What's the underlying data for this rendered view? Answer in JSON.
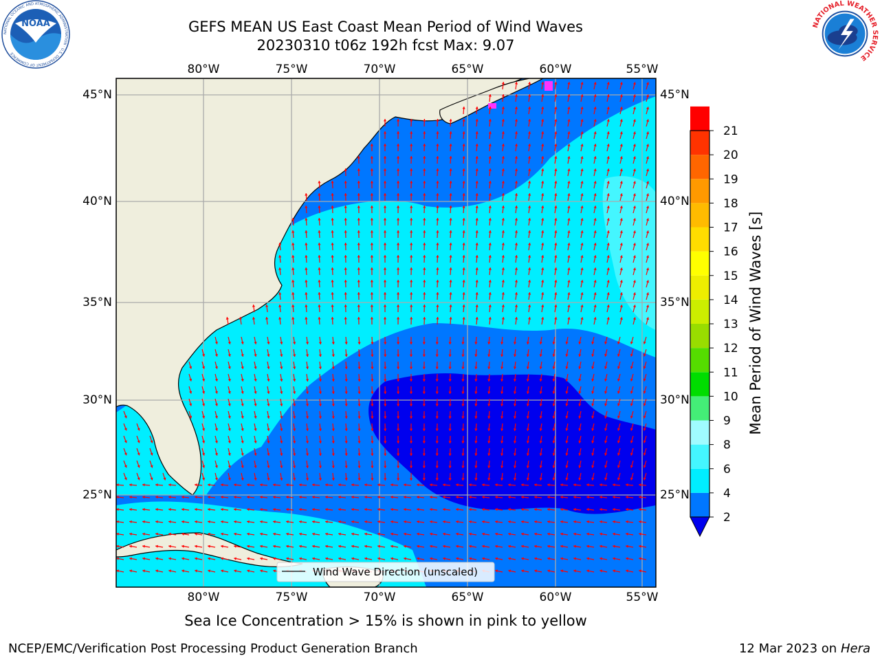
{
  "title": "GEFS MEAN US East Coast Mean Period of Wind Waves",
  "subtitle": "20230310 t06z 192h fcst   Max: 9.07",
  "longitude_labels": [
    "80°W",
    "75°W",
    "70°W",
    "65°W",
    "60°W",
    "55°W"
  ],
  "latitude_labels": [
    "45°N",
    "40°N",
    "35°N",
    "30°N",
    "25°N"
  ],
  "legend_label": "Wind Wave Direction (unscaled)",
  "colorbar": {
    "label": "Mean Period of Wind Waves [s]",
    "ticks": [
      "2",
      "4",
      "6",
      "8",
      "9",
      "10",
      "11",
      "12",
      "13",
      "14",
      "15",
      "16",
      "17",
      "18",
      "19",
      "20",
      "21"
    ],
    "colors": [
      "#0077ff",
      "#00eeff",
      "#44f6ff",
      "#a0fbff",
      "#44ee77",
      "#00dd00",
      "#55dd00",
      "#99dd00",
      "#ccee00",
      "#eeee00",
      "#ffff00",
      "#ffdd00",
      "#ffbb00",
      "#ff9900",
      "#ff6600",
      "#ff3300",
      "#ff0000"
    ],
    "under_color": "#0000ee"
  },
  "colors": {
    "land": "#efeedd",
    "ocean_2_4": "#0077ff",
    "ocean_lt2": "#0000ee",
    "ocean_4_6": "#00eeff",
    "ocean_6_8": "#44f6ff",
    "arrow": "#ff0000",
    "ice": "#ff33ff"
  },
  "sea_ice_note": "Sea Ice Concentration > 15% is shown in pink to yellow",
  "footer": {
    "credit": "NCEP/EMC/Verification Post Processing Product Generation Branch",
    "date": "12 Mar 2023 on",
    "machine": "Hera"
  },
  "logos": {
    "left": "NOAA",
    "left_ring": "NATIONAL OCEANIC AND ATMOSPHERIC ADMINISTRATION · U.S. DEPARTMENT OF COMMERCE",
    "right_ring": "NATIONAL WEATHER SERVICE"
  }
}
